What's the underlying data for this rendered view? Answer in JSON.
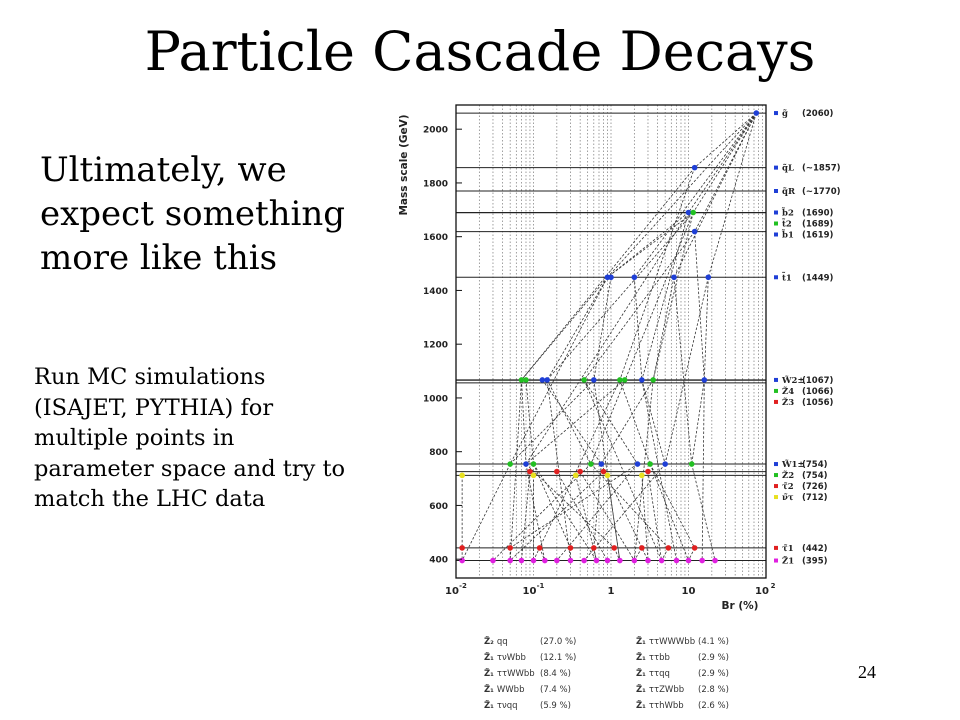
{
  "slide": {
    "title": "Particle Cascade Decays",
    "lead_lines": [
      "Ultimately, we",
      "expect something",
      "more like this"
    ],
    "body_lines": [
      "Run MC simulations",
      "(ISAJET, PYTHIA) for",
      "multiple points in",
      "parameter space and try to",
      "match the LHC data"
    ],
    "page_number": "24"
  },
  "chart_data": {
    "type": "scatter",
    "ylabel": "Mass scale (GeV)",
    "xlabel": "Br (%)",
    "xscale": "log",
    "xlim": [
      0.01,
      100
    ],
    "ylim": [
      330,
      2090
    ],
    "y_ticks": [
      400,
      600,
      800,
      1000,
      1200,
      1400,
      1600,
      1800,
      2000
    ],
    "x_tick_labels": [
      "10",
      "10",
      "1",
      "10",
      "10"
    ],
    "x_tick_exponents": [
      "-2",
      "-1",
      "",
      "",
      "2"
    ],
    "grid": "vertical dotted",
    "levels": [
      {
        "name": "g̃",
        "mass": 2060,
        "label": "(2060)",
        "color": "#1f3fd6"
      },
      {
        "name": "q̃L",
        "mass": 1857,
        "label": "(~1857)",
        "color": "#1f3fd6"
      },
      {
        "name": "q̃R",
        "mass": 1770,
        "label": "(~1770)",
        "color": "#1f3fd6"
      },
      {
        "name": "b̃2",
        "mass": 1690,
        "label": "(1690)",
        "color": "#1f3fd6"
      },
      {
        "name": "t̃2",
        "mass": 1689,
        "label": "(1689)",
        "color": "#22c022"
      },
      {
        "name": "b̃1",
        "mass": 1619,
        "label": "(1619)",
        "color": "#1f3fd6"
      },
      {
        "name": "t̃1",
        "mass": 1449,
        "label": "(1449)",
        "color": "#1f3fd6"
      },
      {
        "name": "W̃2±",
        "mass": 1067,
        "label": "(1067)",
        "color": "#1f3fd6"
      },
      {
        "name": "Z̃4",
        "mass": 1066,
        "label": "(1066)",
        "color": "#22c022"
      },
      {
        "name": "Z̃3",
        "mass": 1056,
        "label": "(1056)",
        "color": "#e02020"
      },
      {
        "name": "W̃1±",
        "mass": 754,
        "label": "(754)",
        "color": "#1f3fd6"
      },
      {
        "name": "Z̃2",
        "mass": 754,
        "label": "(754)",
        "color": "#22c022"
      },
      {
        "name": "τ̃2",
        "mass": 726,
        "label": "(726)",
        "color": "#e02020"
      },
      {
        "name": "ν̃τ",
        "mass": 712,
        "label": "(712)",
        "color": "#e8e020"
      },
      {
        "name": "τ̃1",
        "mass": 442,
        "label": "(442)",
        "color": "#e02020"
      },
      {
        "name": "Z̃1",
        "mass": 395,
        "label": "(395)",
        "color": "#e020e0"
      }
    ],
    "points": [
      {
        "br": 75,
        "mass": 2060,
        "c": "#1f3fd6"
      },
      {
        "br": 12,
        "mass": 1857,
        "c": "#1f3fd6"
      },
      {
        "br": 10,
        "mass": 1690,
        "c": "#1f3fd6"
      },
      {
        "br": 11.5,
        "mass": 1690,
        "c": "#22c022"
      },
      {
        "br": 12,
        "mass": 1619,
        "c": "#1f3fd6"
      },
      {
        "br": 0.9,
        "mass": 1449,
        "c": "#1f3fd6"
      },
      {
        "br": 1.0,
        "mass": 1449,
        "c": "#1f3fd6"
      },
      {
        "br": 2.0,
        "mass": 1449,
        "c": "#1f3fd6"
      },
      {
        "br": 6.5,
        "mass": 1449,
        "c": "#1f3fd6"
      },
      {
        "br": 18,
        "mass": 1449,
        "c": "#1f3fd6"
      },
      {
        "br": 0.07,
        "mass": 1067,
        "c": "#22c022"
      },
      {
        "br": 0.08,
        "mass": 1067,
        "c": "#22c022"
      },
      {
        "br": 0.13,
        "mass": 1067,
        "c": "#1f3fd6"
      },
      {
        "br": 0.15,
        "mass": 1067,
        "c": "#1f3fd6"
      },
      {
        "br": 0.45,
        "mass": 1067,
        "c": "#22c022"
      },
      {
        "br": 0.6,
        "mass": 1067,
        "c": "#1f3fd6"
      },
      {
        "br": 1.3,
        "mass": 1067,
        "c": "#22c022"
      },
      {
        "br": 1.5,
        "mass": 1067,
        "c": "#22c022"
      },
      {
        "br": 2.5,
        "mass": 1067,
        "c": "#1f3fd6"
      },
      {
        "br": 3.5,
        "mass": 1067,
        "c": "#22c022"
      },
      {
        "br": 16,
        "mass": 1067,
        "c": "#1f3fd6"
      },
      {
        "br": 0.05,
        "mass": 754,
        "c": "#22c022"
      },
      {
        "br": 0.08,
        "mass": 754,
        "c": "#1f3fd6"
      },
      {
        "br": 0.1,
        "mass": 754,
        "c": "#22c022"
      },
      {
        "br": 0.55,
        "mass": 754,
        "c": "#22c022"
      },
      {
        "br": 0.75,
        "mass": 754,
        "c": "#1f3fd6"
      },
      {
        "br": 2.2,
        "mass": 754,
        "c": "#1f3fd6"
      },
      {
        "br": 3.2,
        "mass": 754,
        "c": "#22c022"
      },
      {
        "br": 5.0,
        "mass": 754,
        "c": "#1f3fd6"
      },
      {
        "br": 11,
        "mass": 754,
        "c": "#22c022"
      },
      {
        "br": 0.09,
        "mass": 726,
        "c": "#e02020"
      },
      {
        "br": 0.2,
        "mass": 726,
        "c": "#e02020"
      },
      {
        "br": 0.4,
        "mass": 726,
        "c": "#e02020"
      },
      {
        "br": 0.8,
        "mass": 726,
        "c": "#e02020"
      },
      {
        "br": 3,
        "mass": 726,
        "c": "#e02020"
      },
      {
        "br": 0.012,
        "mass": 712,
        "c": "#e8e020"
      },
      {
        "br": 0.1,
        "mass": 712,
        "c": "#e8e020"
      },
      {
        "br": 0.35,
        "mass": 712,
        "c": "#e8e020"
      },
      {
        "br": 0.9,
        "mass": 712,
        "c": "#e8e020"
      },
      {
        "br": 2.5,
        "mass": 712,
        "c": "#e8e020"
      },
      {
        "br": 0.012,
        "mass": 442,
        "c": "#e02020"
      },
      {
        "br": 0.05,
        "mass": 442,
        "c": "#e02020"
      },
      {
        "br": 0.12,
        "mass": 442,
        "c": "#e02020"
      },
      {
        "br": 0.3,
        "mass": 442,
        "c": "#e02020"
      },
      {
        "br": 0.6,
        "mass": 442,
        "c": "#e02020"
      },
      {
        "br": 1.1,
        "mass": 442,
        "c": "#e02020"
      },
      {
        "br": 2.5,
        "mass": 442,
        "c": "#e02020"
      },
      {
        "br": 5.5,
        "mass": 442,
        "c": "#e02020"
      },
      {
        "br": 12,
        "mass": 442,
        "c": "#e02020"
      },
      {
        "br": 0.012,
        "mass": 395,
        "c": "#e020e0"
      },
      {
        "br": 0.03,
        "mass": 395,
        "c": "#e020e0"
      },
      {
        "br": 0.05,
        "mass": 395,
        "c": "#e020e0"
      },
      {
        "br": 0.07,
        "mass": 395,
        "c": "#e020e0"
      },
      {
        "br": 0.1,
        "mass": 395,
        "c": "#e020e0"
      },
      {
        "br": 0.14,
        "mass": 395,
        "c": "#e020e0"
      },
      {
        "br": 0.2,
        "mass": 395,
        "c": "#e020e0"
      },
      {
        "br": 0.3,
        "mass": 395,
        "c": "#e020e0"
      },
      {
        "br": 0.45,
        "mass": 395,
        "c": "#e020e0"
      },
      {
        "br": 0.65,
        "mass": 395,
        "c": "#e020e0"
      },
      {
        "br": 0.9,
        "mass": 395,
        "c": "#e020e0"
      },
      {
        "br": 1.3,
        "mass": 395,
        "c": "#e020e0"
      },
      {
        "br": 2.0,
        "mass": 395,
        "c": "#e020e0"
      },
      {
        "br": 3.0,
        "mass": 395,
        "c": "#e020e0"
      },
      {
        "br": 4.5,
        "mass": 395,
        "c": "#e020e0"
      },
      {
        "br": 7,
        "mass": 395,
        "c": "#e020e0"
      },
      {
        "br": 10,
        "mass": 395,
        "c": "#e020e0"
      },
      {
        "br": 15,
        "mass": 395,
        "c": "#e020e0"
      },
      {
        "br": 22,
        "mass": 395,
        "c": "#e020e0"
      }
    ],
    "decay_lines": [
      [
        [
          75,
          2060
        ],
        [
          12,
          1857
        ]
      ],
      [
        [
          75,
          2060
        ],
        [
          10,
          1690
        ]
      ],
      [
        [
          75,
          2060
        ],
        [
          11.5,
          1690
        ]
      ],
      [
        [
          75,
          2060
        ],
        [
          12,
          1619
        ]
      ],
      [
        [
          75,
          2060
        ],
        [
          0.9,
          1449
        ]
      ],
      [
        [
          75,
          2060
        ],
        [
          2.0,
          1449
        ]
      ],
      [
        [
          75,
          2060
        ],
        [
          6.5,
          1449
        ]
      ],
      [
        [
          75,
          2060
        ],
        [
          18,
          1449
        ]
      ],
      [
        [
          12,
          1857
        ],
        [
          0.07,
          1067
        ]
      ],
      [
        [
          12,
          1857
        ],
        [
          1.3,
          1067
        ]
      ],
      [
        [
          10,
          1690
        ],
        [
          0.9,
          1449
        ]
      ],
      [
        [
          11.5,
          1690
        ],
        [
          0.9,
          1449
        ]
      ],
      [
        [
          11.5,
          1690
        ],
        [
          0.15,
          1067
        ]
      ],
      [
        [
          10,
          1690
        ],
        [
          2.5,
          1067
        ]
      ],
      [
        [
          11.5,
          1690
        ],
        [
          3.5,
          1067
        ]
      ],
      [
        [
          12,
          1619
        ],
        [
          0.45,
          1067
        ]
      ],
      [
        [
          12,
          1619
        ],
        [
          16,
          1067
        ]
      ],
      [
        [
          10,
          1690
        ],
        [
          0.08,
          754
        ]
      ],
      [
        [
          11.5,
          1690
        ],
        [
          0.55,
          754
        ]
      ],
      [
        [
          0.9,
          1449
        ],
        [
          0.07,
          1067
        ]
      ],
      [
        [
          0.9,
          1449
        ],
        [
          0.15,
          1067
        ]
      ],
      [
        [
          1.0,
          1449
        ],
        [
          0.6,
          1067
        ]
      ],
      [
        [
          2.0,
          1449
        ],
        [
          2.5,
          1067
        ]
      ],
      [
        [
          6.5,
          1449
        ],
        [
          3.5,
          1067
        ]
      ],
      [
        [
          18,
          1449
        ],
        [
          16,
          1067
        ]
      ],
      [
        [
          0.9,
          1449
        ],
        [
          0.05,
          754
        ]
      ],
      [
        [
          6.5,
          1449
        ],
        [
          11,
          754
        ]
      ],
      [
        [
          18,
          1449
        ],
        [
          5.0,
          754
        ]
      ],
      [
        [
          0.07,
          1067
        ],
        [
          0.08,
          754
        ]
      ],
      [
        [
          0.08,
          1067
        ],
        [
          0.1,
          754
        ]
      ],
      [
        [
          0.13,
          1067
        ],
        [
          0.75,
          754
        ]
      ],
      [
        [
          0.15,
          1067
        ],
        [
          0.55,
          754
        ]
      ],
      [
        [
          0.45,
          1067
        ],
        [
          2.2,
          754
        ]
      ],
      [
        [
          0.6,
          1067
        ],
        [
          0.05,
          754
        ]
      ],
      [
        [
          1.3,
          1067
        ],
        [
          3.2,
          754
        ]
      ],
      [
        [
          1.5,
          1067
        ],
        [
          0.08,
          754
        ]
      ],
      [
        [
          2.5,
          1067
        ],
        [
          5.0,
          754
        ]
      ],
      [
        [
          3.5,
          1067
        ],
        [
          0.75,
          754
        ]
      ],
      [
        [
          16,
          1067
        ],
        [
          11,
          754
        ]
      ],
      [
        [
          0.07,
          1067
        ],
        [
          0.05,
          395
        ]
      ],
      [
        [
          0.15,
          1067
        ],
        [
          0.3,
          395
        ]
      ],
      [
        [
          0.6,
          1067
        ],
        [
          1.3,
          395
        ]
      ],
      [
        [
          1.3,
          1067
        ],
        [
          0.1,
          395
        ]
      ],
      [
        [
          2.5,
          1067
        ],
        [
          7,
          395
        ]
      ],
      [
        [
          3.5,
          1067
        ],
        [
          2.0,
          395
        ]
      ],
      [
        [
          16,
          1067
        ],
        [
          15,
          395
        ]
      ],
      [
        [
          0.45,
          1067
        ],
        [
          4.5,
          395
        ]
      ],
      [
        [
          0.05,
          754
        ],
        [
          0.012,
          395
        ]
      ],
      [
        [
          0.08,
          754
        ],
        [
          0.14,
          395
        ]
      ],
      [
        [
          0.1,
          754
        ],
        [
          0.65,
          395
        ]
      ],
      [
        [
          0.55,
          754
        ],
        [
          0.03,
          395
        ]
      ],
      [
        [
          0.75,
          754
        ],
        [
          3.0,
          395
        ]
      ],
      [
        [
          2.2,
          754
        ],
        [
          0.2,
          395
        ]
      ],
      [
        [
          3.2,
          754
        ],
        [
          10,
          395
        ]
      ],
      [
        [
          5.0,
          754
        ],
        [
          0.45,
          395
        ]
      ],
      [
        [
          11,
          754
        ],
        [
          22,
          395
        ]
      ],
      [
        [
          0.08,
          754
        ],
        [
          1.1,
          442
        ]
      ],
      [
        [
          0.1,
          754
        ],
        [
          0.3,
          442
        ]
      ],
      [
        [
          0.55,
          754
        ],
        [
          5.5,
          442
        ]
      ],
      [
        [
          2.2,
          754
        ],
        [
          0.05,
          442
        ]
      ],
      [
        [
          3.2,
          754
        ],
        [
          12,
          442
        ]
      ],
      [
        [
          0.75,
          754
        ],
        [
          0.6,
          442
        ]
      ],
      [
        [
          0.09,
          726
        ],
        [
          0.07,
          395
        ]
      ],
      [
        [
          0.2,
          726
        ],
        [
          0.9,
          395
        ]
      ],
      [
        [
          0.4,
          726
        ],
        [
          2.0,
          395
        ]
      ],
      [
        [
          0.8,
          726
        ],
        [
          0.05,
          395
        ]
      ],
      [
        [
          3,
          726
        ],
        [
          4.5,
          395
        ]
      ],
      [
        [
          0.1,
          712
        ],
        [
          0.1,
          395
        ]
      ],
      [
        [
          0.35,
          712
        ],
        [
          0.65,
          395
        ]
      ],
      [
        [
          0.9,
          712
        ],
        [
          1.3,
          395
        ]
      ],
      [
        [
          2.5,
          712
        ],
        [
          3.0,
          395
        ]
      ],
      [
        [
          0.012,
          712
        ],
        [
          0.012,
          442
        ]
      ],
      [
        [
          0.012,
          442
        ],
        [
          0.012,
          395
        ]
      ],
      [
        [
          0.05,
          442
        ],
        [
          0.05,
          395
        ]
      ],
      [
        [
          0.12,
          442
        ],
        [
          0.14,
          395
        ]
      ],
      [
        [
          0.3,
          442
        ],
        [
          0.3,
          395
        ]
      ],
      [
        [
          0.6,
          442
        ],
        [
          0.65,
          395
        ]
      ],
      [
        [
          1.1,
          442
        ],
        [
          1.3,
          395
        ]
      ],
      [
        [
          2.5,
          442
        ],
        [
          2.0,
          395
        ]
      ],
      [
        [
          5.5,
          442
        ],
        [
          4.5,
          395
        ]
      ],
      [
        [
          12,
          442
        ],
        [
          10,
          395
        ]
      ]
    ],
    "legend": [
      {
        "symbol": "Z̃₂",
        "mode": "qq",
        "pct": "(27.0 %)"
      },
      {
        "symbol": "Z̃₁",
        "mode": "τνWbb",
        "pct": "(12.1 %)"
      },
      {
        "symbol": "Z̃₁",
        "mode": "ττWWbb",
        "pct": "(8.4 %)"
      },
      {
        "symbol": "Z̃₁",
        "mode": "WWbb",
        "pct": "(7.4 %)"
      },
      {
        "symbol": "Z̃₁",
        "mode": "τνqq",
        "pct": "(5.9 %)"
      },
      {
        "symbol": "Z̃₁",
        "mode": "ττWWWbb",
        "pct": "(4.1 %)"
      },
      {
        "symbol": "Z̃₁",
        "mode": "ττbb",
        "pct": "(2.9 %)"
      },
      {
        "symbol": "Z̃₁",
        "mode": "ττqq",
        "pct": "(2.9 %)"
      },
      {
        "symbol": "Z̃₁",
        "mode": "ττZWbb",
        "pct": "(2.8 %)"
      },
      {
        "symbol": "Z̃₁",
        "mode": "ττhWbb",
        "pct": "(2.6 %)"
      }
    ]
  }
}
